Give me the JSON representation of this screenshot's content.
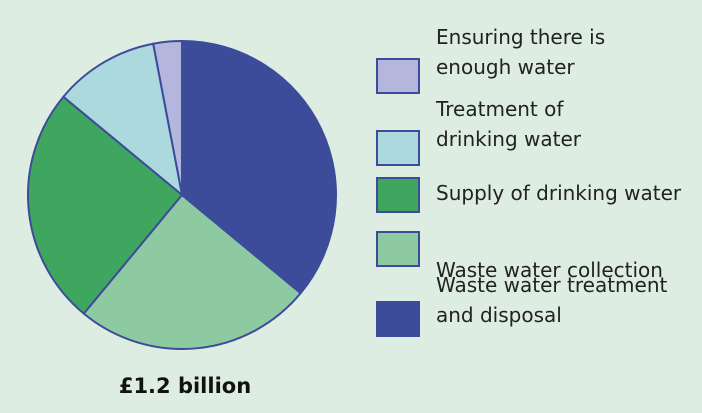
{
  "chart_data": {
    "type": "pie",
    "title": "£1.2 billion",
    "categories": [
      "Ensuring there is enough water",
      "Treatment of drinking water",
      "Supply of drinking water",
      "Waste water collection",
      "Waste water treatment and disposal"
    ],
    "values": [
      3,
      11,
      25,
      25,
      36
    ],
    "colors": [
      "#b4b6de",
      "#acd9dd",
      "#3fa65f",
      "#8ecaa1",
      "#3c4c9b"
    ]
  }
}
